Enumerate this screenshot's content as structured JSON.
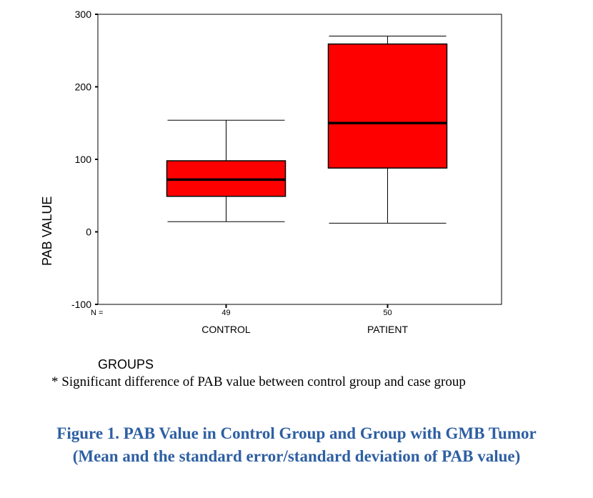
{
  "chart_data": {
    "type": "boxplot",
    "xlabel": "GROUPS",
    "ylabel": "PAB VALUE",
    "ylim": [
      -100,
      300
    ],
    "yticks": [
      -100,
      0,
      100,
      200,
      300
    ],
    "n_prefix": "N =",
    "grid": false,
    "colors": {
      "box_fill": "#ff0000",
      "stroke": "#000000"
    },
    "groups": [
      {
        "category": "CONTROL",
        "n": "49",
        "min": 14,
        "q1": 49,
        "median": 72,
        "q3": 98,
        "max": 154
      },
      {
        "category": "PATIENT",
        "n": "50",
        "min": 12,
        "q1": 88,
        "median": 150,
        "q3": 259,
        "max": 270
      }
    ]
  },
  "footnote": "* Significant difference of PAB value between control group and case group",
  "figure_caption": {
    "line1": "Figure 1. PAB Value in Control Group and Group with GMB Tumor",
    "line2": "(Mean and the standard error/standard deviation of PAB value)",
    "color": "#2e5fa3"
  }
}
